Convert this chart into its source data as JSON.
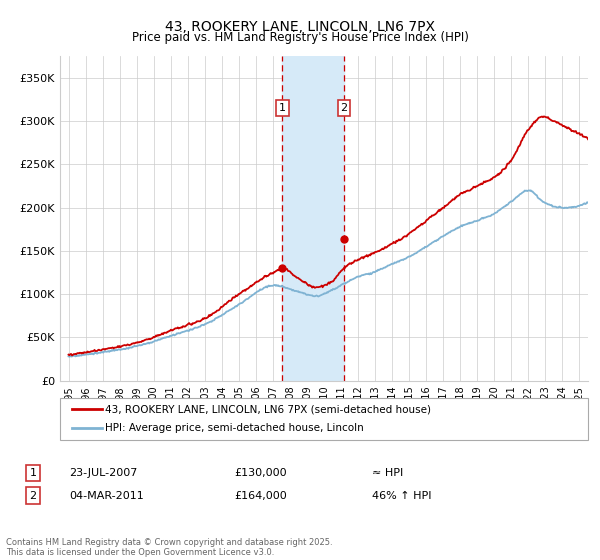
{
  "title": "43, ROOKERY LANE, LINCOLN, LN6 7PX",
  "subtitle": "Price paid vs. HM Land Registry's House Price Index (HPI)",
  "ylabel_ticks": [
    "£0",
    "£50K",
    "£100K",
    "£150K",
    "£200K",
    "£250K",
    "£300K",
    "£350K"
  ],
  "ytick_vals": [
    0,
    50000,
    100000,
    150000,
    200000,
    250000,
    300000,
    350000
  ],
  "ylim": [
    0,
    375000
  ],
  "xlim_start": 1994.5,
  "xlim_end": 2025.5,
  "sale1_date": 2007.55,
  "sale2_date": 2011.17,
  "sale1_price": 130000,
  "sale2_price": 164000,
  "sale1_label": "23-JUL-2007",
  "sale2_label": "04-MAR-2011",
  "sale1_hpi": "≈ HPI",
  "sale2_hpi": "46% ↑ HPI",
  "legend_line1": "43, ROOKERY LANE, LINCOLN, LN6 7PX (semi-detached house)",
  "legend_line2": "HPI: Average price, semi-detached house, Lincoln",
  "footer": "Contains HM Land Registry data © Crown copyright and database right 2025.\nThis data is licensed under the Open Government Licence v3.0.",
  "line_color_red": "#cc0000",
  "line_color_blue": "#7fb3d3",
  "shading_color": "#d6eaf8",
  "marker_color_red": "#cc0000",
  "dashed_line_color": "#cc0000",
  "background_color": "#ffffff",
  "grid_color": "#cccccc",
  "box_color": "#cc3333",
  "xtick_years": [
    1995,
    1996,
    1997,
    1998,
    1999,
    2000,
    2001,
    2002,
    2003,
    2004,
    2005,
    2006,
    2007,
    2008,
    2009,
    2010,
    2011,
    2012,
    2013,
    2014,
    2015,
    2016,
    2017,
    2018,
    2019,
    2020,
    2021,
    2022,
    2023,
    2024,
    2025
  ]
}
